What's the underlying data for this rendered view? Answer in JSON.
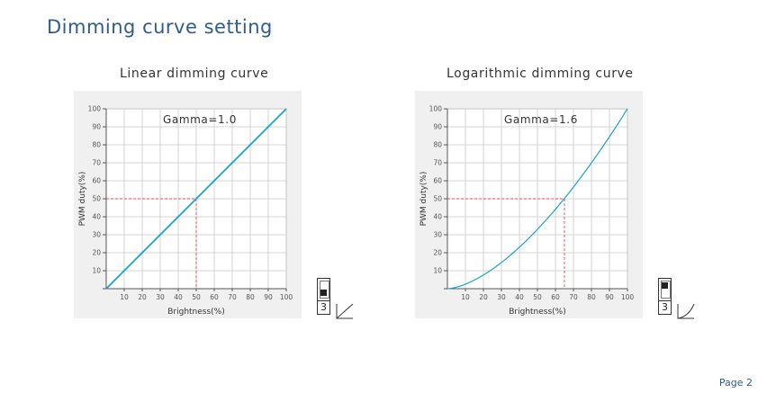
{
  "page": {
    "title": "Dimming curve setting",
    "page_number": "Page 2"
  },
  "chart_data": [
    {
      "type": "line",
      "title": "Linear dimming curve",
      "annotation": "Gamma=1.0",
      "xlabel": "Brightness(%)",
      "ylabel": "PWM duty(%)",
      "xlim": [
        0,
        100
      ],
      "ylim": [
        0,
        100
      ],
      "x_ticks": [
        "10",
        "20",
        "30",
        "40",
        "50",
        "60",
        "70",
        "80",
        "90",
        "100"
      ],
      "y_ticks": [
        "10",
        "20",
        "30",
        "40",
        "50",
        "60",
        "70",
        "80",
        "90",
        "100"
      ],
      "grid": true,
      "gamma": 1.0,
      "series_color": "#1aa3c8",
      "guide_color": "#d9534f",
      "guide_point": {
        "x": 50,
        "y": 50
      },
      "x": [
        0,
        10,
        20,
        30,
        40,
        50,
        60,
        70,
        80,
        90,
        100
      ],
      "y": [
        0,
        10,
        20,
        30,
        40,
        50,
        60,
        70,
        80,
        90,
        100
      ],
      "dip_switch": {
        "number": "3",
        "position": "down"
      }
    },
    {
      "type": "line",
      "title": "Logarithmic dimming curve",
      "annotation": "Gamma=1.6",
      "xlabel": "Brightness(%)",
      "ylabel": "PWM duty(%)",
      "xlim": [
        0,
        100
      ],
      "ylim": [
        0,
        100
      ],
      "x_ticks": [
        "10",
        "20",
        "30",
        "40",
        "50",
        "60",
        "70",
        "80",
        "90",
        "100"
      ],
      "y_ticks": [
        "10",
        "20",
        "30",
        "40",
        "50",
        "60",
        "70",
        "80",
        "90",
        "100"
      ],
      "grid": true,
      "gamma": 1.6,
      "series_color": "#1aa3c8",
      "guide_color": "#d9534f",
      "guide_point": {
        "x": 65,
        "y": 50
      },
      "x": [
        0,
        10,
        20,
        30,
        40,
        50,
        60,
        70,
        80,
        90,
        100
      ],
      "y": [
        0,
        2.5,
        7.6,
        14.6,
        23.1,
        33,
        44.2,
        56.5,
        70,
        84.5,
        100
      ],
      "dip_switch": {
        "number": "3",
        "position": "up"
      }
    }
  ]
}
